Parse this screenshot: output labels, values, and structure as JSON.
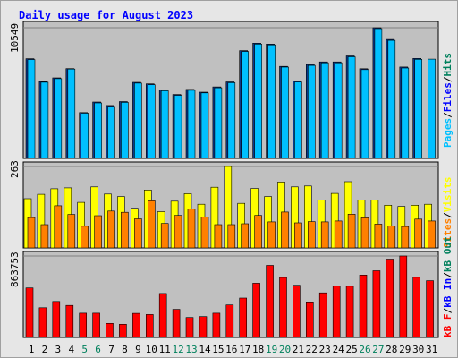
{
  "title": "Daily usage for August 2023",
  "colors": {
    "panel_bg": "#c0c0c0",
    "frame_bg": "#e6e6e6",
    "hits": "#00805c",
    "files": "#0000ff",
    "pages": "#00c0ff",
    "visits": "#ffff00",
    "sites": "#ff8000",
    "kb_f": "#ff0000",
    "kb_in": "#0000ff",
    "kb_out": "#00805c",
    "weekday_label": "#000000",
    "weekend_label": "#00805c"
  },
  "legends": {
    "top": [
      "Pages",
      "Files",
      "Hits"
    ],
    "middle": [
      "Sites",
      "Visits"
    ],
    "bottom": [
      "kB F",
      "kB In",
      "kB Out"
    ]
  },
  "chart_data": {
    "type": "bar",
    "categories": [
      "1",
      "2",
      "3",
      "4",
      "5",
      "6",
      "7",
      "8",
      "9",
      "10",
      "11",
      "12",
      "13",
      "14",
      "15",
      "16",
      "17",
      "18",
      "19",
      "20",
      "21",
      "22",
      "23",
      "24",
      "25",
      "26",
      "27",
      "28",
      "29",
      "30",
      "31"
    ],
    "weekend_days": [
      5,
      6,
      12,
      13,
      19,
      20,
      26,
      27
    ],
    "panels": [
      {
        "name": "requests",
        "ymax_label": "10549",
        "ymax": 10549,
        "series": [
          {
            "name": "Files",
            "values": [
              8050,
              6200,
              6500,
              7250,
              3700,
              4550,
              4270,
              4590,
              6140,
              6020,
              5530,
              5160,
              5570,
              5350,
              5770,
              6180,
              8700,
              9300,
              9230,
              7430,
              6240,
              7580,
              7790,
              7790,
              8270,
              7240,
              10549,
              9600,
              7380,
              8070,
              0
            ]
          },
          {
            "name": "Pages",
            "values": [
              7980,
              6150,
              6440,
              7210,
              3650,
              4480,
              4200,
              4520,
              6080,
              5950,
              5460,
              5090,
              5500,
              5290,
              5700,
              6110,
              8630,
              9230,
              9160,
              7370,
              6170,
              7510,
              7720,
              7720,
              8200,
              7170,
              10480,
              9530,
              7300,
              8000,
              8010
            ]
          }
        ]
      },
      {
        "name": "visitors",
        "ymax_label": "263",
        "ymax": 263,
        "series": [
          {
            "name": "Visits",
            "values": [
              159,
              173,
              191,
              194,
              147,
              197,
              174,
              166,
              128,
              187,
              117,
              151,
              175,
              141,
              196,
              263,
              144,
              192,
              166,
              213,
              197,
              200,
              154,
              176,
              214,
              155,
              154,
              138,
              134,
              138,
              141
            ]
          },
          {
            "name": "Sites",
            "values": [
              98,
              75,
              136,
              108,
              70,
              104,
              119,
              115,
              94,
              152,
              79,
              105,
              126,
              100,
              75,
              75,
              78,
              105,
              84,
              116,
              81,
              85,
              84,
              87,
              109,
              97,
              77,
              71,
              69,
              93,
              87
            ]
          }
        ]
      },
      {
        "name": "traffic",
        "ymax_label": "863753",
        "ymax": 863753,
        "series": [
          {
            "name": "kB F",
            "values": [
              525000,
              315000,
              382000,
              340000,
              257000,
              257000,
              149000,
              140000,
              255000,
              243000,
              466000,
              298000,
              212000,
              221000,
              257000,
              345000,
              418000,
              575000,
              764000,
              636000,
              553000,
              377000,
              473000,
              546000,
              543000,
              662000,
              707000,
              831000,
              863753,
              638000,
              602000
            ]
          }
        ]
      }
    ]
  }
}
